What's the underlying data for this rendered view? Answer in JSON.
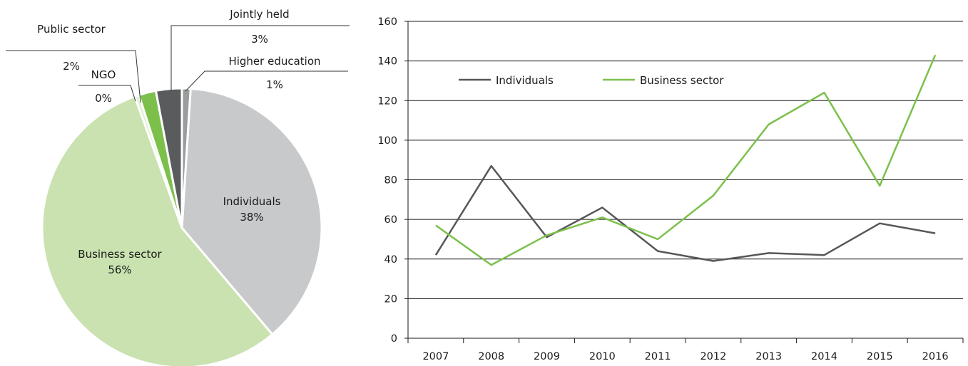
{
  "chart_data": [
    {
      "type": "pie",
      "slices": [
        {
          "label": "Individuals",
          "value": 38,
          "value_label": "38%",
          "color": "#c8c9cb"
        },
        {
          "label": "Business sector",
          "value": 56,
          "value_label": "56%",
          "color": "#c9e2b0"
        },
        {
          "label": "NGO",
          "value": 0.5,
          "value_label": "0%",
          "color": "#dff0cf"
        },
        {
          "label": "Public sector",
          "value": 2,
          "value_label": "2%",
          "color": "#7cc04b"
        },
        {
          "label": "Jointly held",
          "value": 3,
          "value_label": "3%",
          "color": "#5a5b5d"
        },
        {
          "label": "Higher education",
          "value": 1,
          "value_label": "1%",
          "color": "#9b9c9e"
        }
      ]
    },
    {
      "type": "line",
      "x": [
        "2007",
        "2008",
        "2009",
        "2010",
        "2011",
        "2012",
        "2013",
        "2014",
        "2015",
        "2016"
      ],
      "ylim": [
        0,
        160
      ],
      "yticks": [
        0,
        20,
        40,
        60,
        80,
        100,
        120,
        140,
        160
      ],
      "grid": true,
      "legend_position": "top-left",
      "series": [
        {
          "name": "Individuals",
          "color": "#56575a",
          "values": [
            42,
            87,
            51,
            66,
            44,
            39,
            43,
            42,
            58,
            53
          ]
        },
        {
          "name": "Business sector",
          "color": "#7cc04b",
          "values": [
            57,
            37,
            52,
            61,
            50,
            72,
            108,
            124,
            77,
            143
          ]
        }
      ]
    }
  ]
}
